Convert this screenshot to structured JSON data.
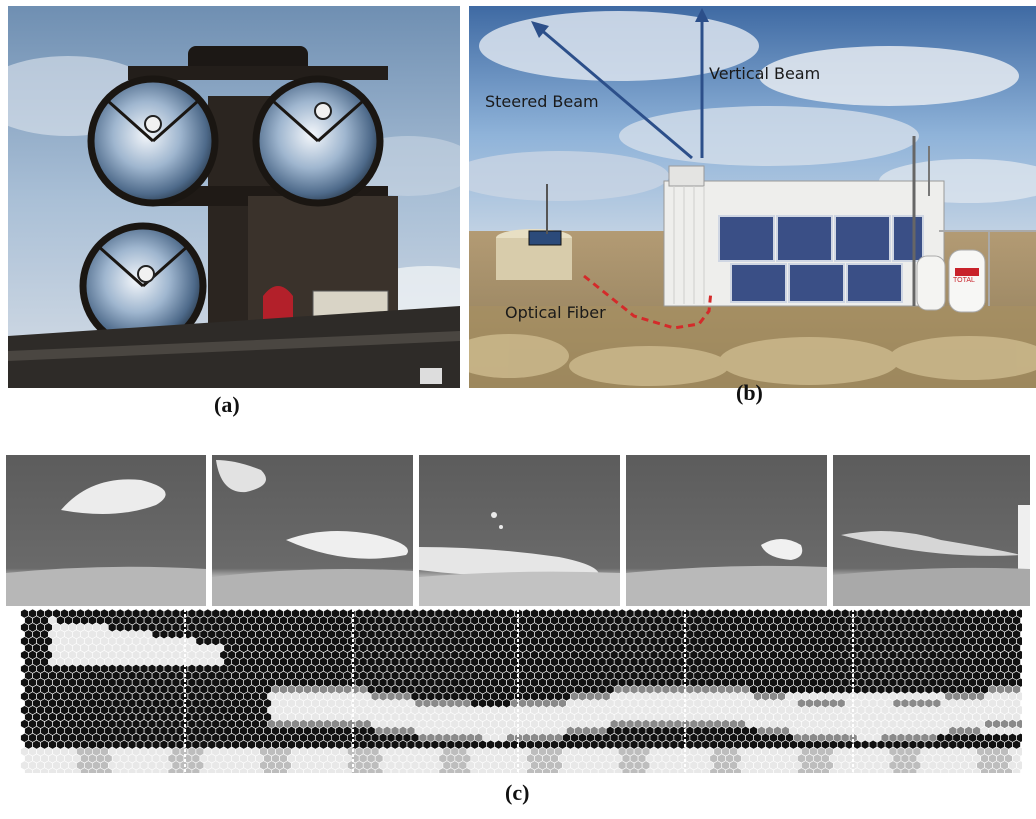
{
  "figure": {
    "captions": {
      "a": "(a)",
      "b": "(b)",
      "c": "(c)"
    },
    "panel_b_annotations": {
      "steered_beam": "Steered Beam",
      "vertical_beam": "Vertical Beam",
      "optical_fiber": "Optical Fiber"
    },
    "panel_b_tank_label": "TOTAL",
    "panel_c": {
      "camera_frame_count": 5,
      "hex_segment_count": 6
    },
    "colors": {
      "sky_blue": "#8fb3d9",
      "beam_arrow": "#2c4f8a",
      "fiber_dash": "#d42a2a",
      "hex_dark": "#111111",
      "hex_light": "#e8e8e8"
    }
  }
}
